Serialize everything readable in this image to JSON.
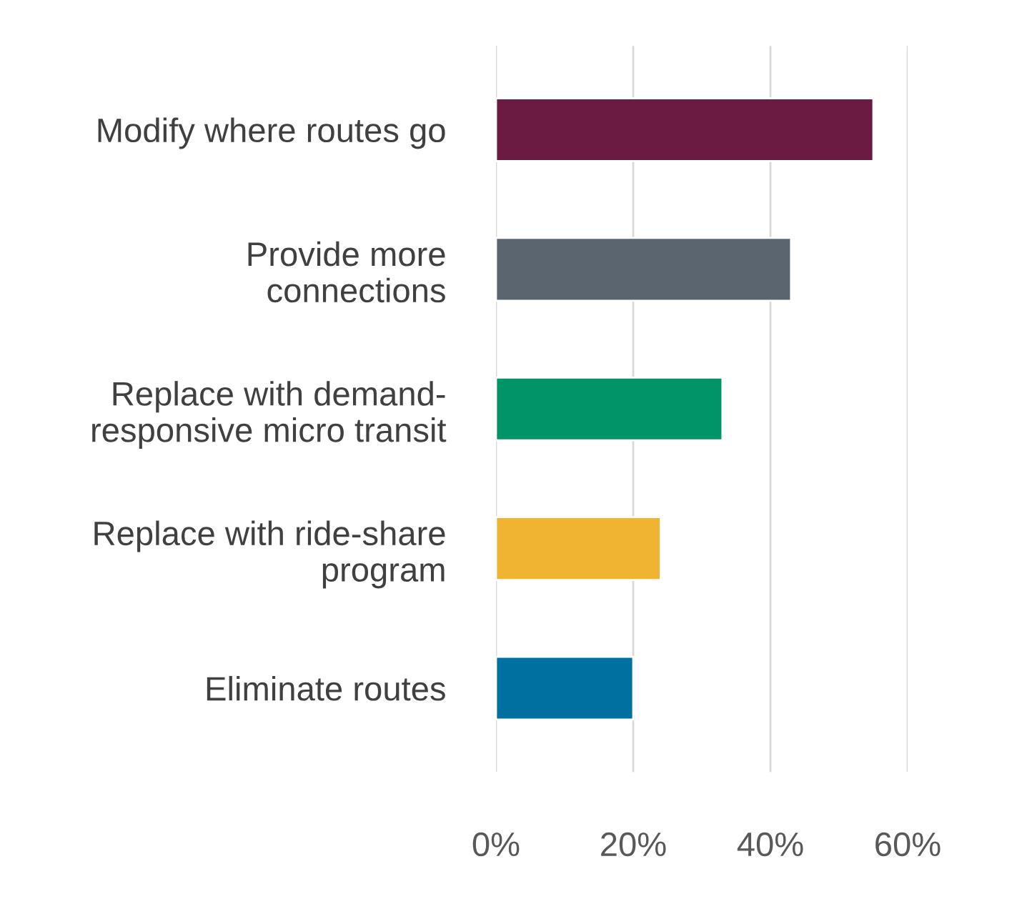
{
  "chart_data": {
    "type": "bar",
    "orientation": "horizontal",
    "categories": [
      "Modify where routes go",
      "Provide more\nconnections",
      "Replace with demand-\nresponsive micro transit",
      "Replace with ride-share\nprogram",
      "Eliminate routes"
    ],
    "values": [
      55,
      43,
      33,
      24,
      20
    ],
    "colors": [
      "#6b1a42",
      "#5a6570",
      "#009468",
      "#f0b432",
      "#0070a0"
    ],
    "xlim": [
      0,
      60
    ],
    "xticks": [
      {
        "value": 0,
        "label": "0%"
      },
      {
        "value": 20,
        "label": "20%"
      },
      {
        "value": 40,
        "label": "40%"
      },
      {
        "value": 60,
        "label": "60%"
      }
    ],
    "grid": "x"
  }
}
